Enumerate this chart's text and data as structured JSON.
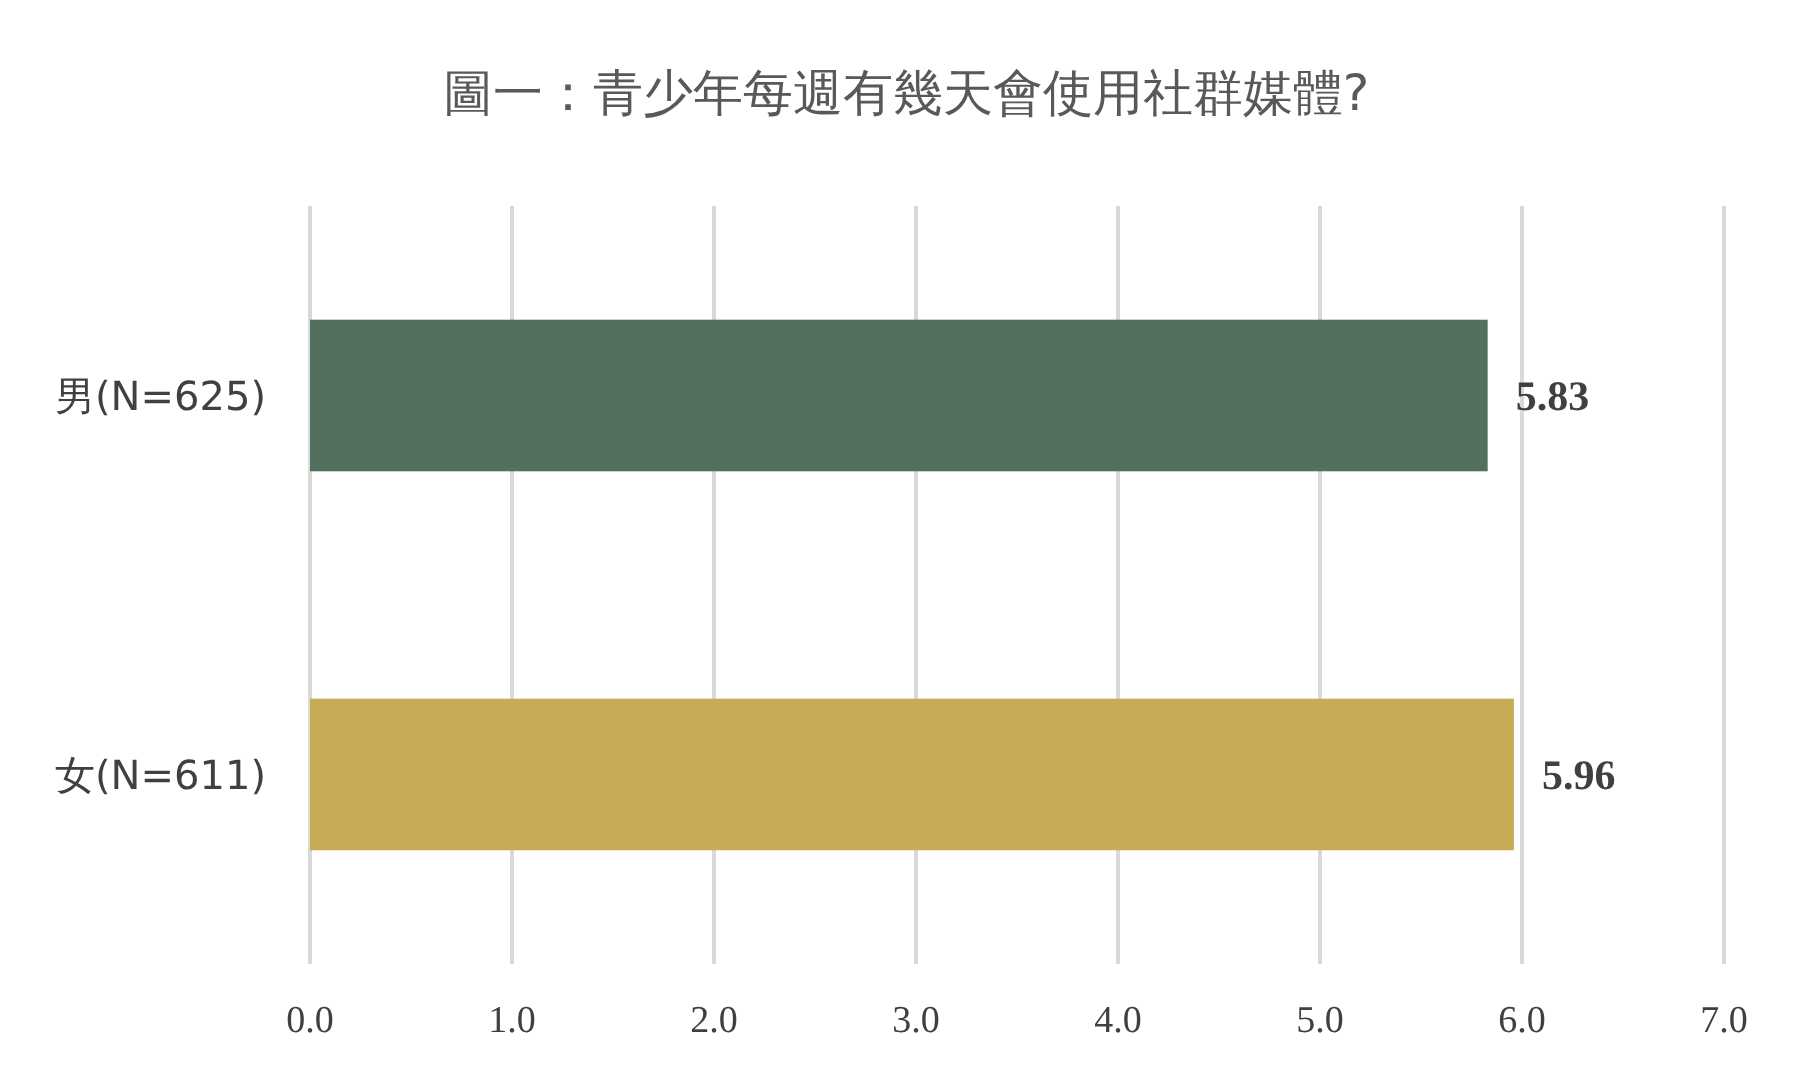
{
  "chart_data": {
    "type": "bar",
    "orientation": "horizontal",
    "title": "圖一：青少年每週有幾天會使用社群媒體?",
    "categories": [
      "男(N=625)",
      "女(N=611)"
    ],
    "values": [
      5.83,
      5.96
    ],
    "colors": [
      "#536f5e",
      "#c9ab57"
    ],
    "xlim": [
      0,
      7
    ],
    "xticks": [
      {
        "value": 0,
        "label": "0.0"
      },
      {
        "value": 1,
        "label": "1.0"
      },
      {
        "value": 2,
        "label": "2.0"
      },
      {
        "value": 3,
        "label": "3.0"
      },
      {
        "value": 4,
        "label": "4.0"
      },
      {
        "value": 5,
        "label": "5.0"
      },
      {
        "value": 6,
        "label": "6.0"
      },
      {
        "value": 7,
        "label": "7.0"
      }
    ],
    "grid": "x",
    "data_labels": true
  }
}
